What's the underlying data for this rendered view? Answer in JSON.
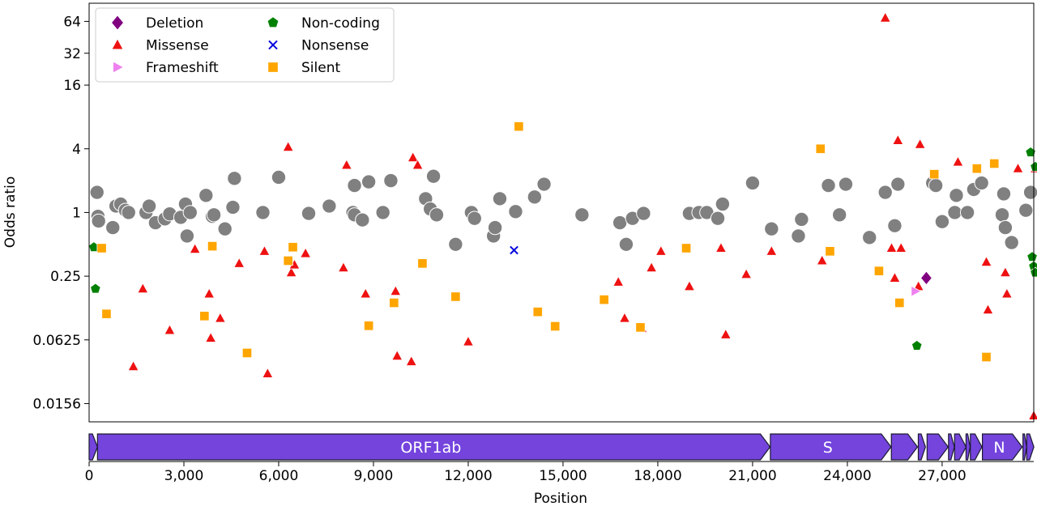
{
  "chart_data": {
    "type": "scatter",
    "title": "",
    "xlabel": "Position",
    "ylabel": "Odds ratio",
    "xlim": [
      0,
      29900
    ],
    "ylim": [
      0.0105,
      95
    ],
    "yscale": "log2",
    "grid": false,
    "legend_position": "top-left",
    "x_ticks": [
      0,
      3000,
      6000,
      9000,
      12000,
      15000,
      18000,
      21000,
      24000,
      27000
    ],
    "x_tick_labels": [
      "0",
      "3,000",
      "6,000",
      "9,000",
      "12,000",
      "15,000",
      "18,000",
      "21,000",
      "24,000",
      "27,000"
    ],
    "y_ticks": [
      0.015625,
      0.0625,
      0.25,
      1,
      4,
      16,
      32,
      64
    ],
    "y_tick_labels": [
      "0.0156",
      "0.0625",
      "0.25",
      "1",
      "4",
      "16",
      "32",
      "64"
    ],
    "series": [
      {
        "name": "Non-variant",
        "legend": false,
        "color": "#808080",
        "marker": "circle",
        "points": [
          [
            250,
            1.55
          ],
          [
            280,
            0.92
          ],
          [
            300,
            0.83
          ],
          [
            750,
            0.72
          ],
          [
            850,
            1.15
          ],
          [
            1000,
            1.2
          ],
          [
            1150,
            1.05
          ],
          [
            1250,
            1.0
          ],
          [
            1800,
            1.0
          ],
          [
            1900,
            1.15
          ],
          [
            2100,
            0.8
          ],
          [
            2400,
            0.87
          ],
          [
            2550,
            0.97
          ],
          [
            2900,
            0.9
          ],
          [
            3050,
            1.2
          ],
          [
            3100,
            0.6
          ],
          [
            3200,
            1.0
          ],
          [
            3700,
            1.45
          ],
          [
            3900,
            0.92
          ],
          [
            3950,
            0.95
          ],
          [
            4300,
            0.7
          ],
          [
            4550,
            1.12
          ],
          [
            4600,
            2.1
          ],
          [
            5500,
            1.0
          ],
          [
            6000,
            2.15
          ],
          [
            6950,
            0.98
          ],
          [
            7600,
            1.15
          ],
          [
            8350,
            1.0
          ],
          [
            8400,
            0.95
          ],
          [
            8400,
            1.8
          ],
          [
            8650,
            0.85
          ],
          [
            8850,
            1.95
          ],
          [
            9300,
            1.0
          ],
          [
            9550,
            2.0
          ],
          [
            10650,
            1.35
          ],
          [
            10800,
            1.08
          ],
          [
            10900,
            2.2
          ],
          [
            11000,
            0.95
          ],
          [
            11600,
            0.5
          ],
          [
            12100,
            1.0
          ],
          [
            12200,
            0.88
          ],
          [
            12800,
            0.6
          ],
          [
            12850,
            0.72
          ],
          [
            13000,
            1.35
          ],
          [
            13500,
            1.02
          ],
          [
            14100,
            1.4
          ],
          [
            14400,
            1.85
          ],
          [
            15600,
            0.95
          ],
          [
            16800,
            0.8
          ],
          [
            17000,
            0.5
          ],
          [
            17200,
            0.88
          ],
          [
            17550,
            0.98
          ],
          [
            19000,
            0.98
          ],
          [
            19300,
            1.0
          ],
          [
            19550,
            1.0
          ],
          [
            19900,
            0.88
          ],
          [
            20050,
            1.2
          ],
          [
            21000,
            1.9
          ],
          [
            21600,
            0.7
          ],
          [
            22450,
            0.6
          ],
          [
            22550,
            0.86
          ],
          [
            23400,
            1.8
          ],
          [
            23750,
            0.95
          ],
          [
            23950,
            1.85
          ],
          [
            24700,
            0.58
          ],
          [
            25200,
            1.55
          ],
          [
            25500,
            0.75
          ],
          [
            25600,
            1.85
          ],
          [
            26700,
            1.9
          ],
          [
            26800,
            1.8
          ],
          [
            27000,
            0.82
          ],
          [
            27400,
            1.0
          ],
          [
            27450,
            1.45
          ],
          [
            27800,
            1.0
          ],
          [
            28000,
            1.65
          ],
          [
            28250,
            1.9
          ],
          [
            28900,
            0.95
          ],
          [
            28950,
            1.5
          ],
          [
            29000,
            0.72
          ],
          [
            29200,
            0.52
          ],
          [
            29650,
            1.05
          ],
          [
            29800,
            1.55
          ]
        ]
      },
      {
        "name": "Deletion",
        "color": "#800080",
        "marker": "diamond",
        "points": [
          [
            26500,
            0.24
          ]
        ]
      },
      {
        "name": "Missense",
        "color": "#ee1111",
        "marker": "triangle",
        "points": [
          [
            1400,
            0.035
          ],
          [
            1700,
            0.19
          ],
          [
            2550,
            0.077
          ],
          [
            3350,
            0.45
          ],
          [
            3800,
            0.17
          ],
          [
            3850,
            0.065
          ],
          [
            4150,
            0.1
          ],
          [
            4750,
            0.33
          ],
          [
            5550,
            0.43
          ],
          [
            5650,
            0.03
          ],
          [
            6300,
            4.15
          ],
          [
            6400,
            0.27
          ],
          [
            6500,
            0.32
          ],
          [
            6850,
            0.41
          ],
          [
            8050,
            0.3
          ],
          [
            8150,
            2.8
          ],
          [
            8750,
            0.17
          ],
          [
            9700,
            0.18
          ],
          [
            9750,
            0.044
          ],
          [
            10200,
            0.039
          ],
          [
            10250,
            3.3
          ],
          [
            10400,
            2.8
          ],
          [
            12000,
            0.06
          ],
          [
            16750,
            0.22
          ],
          [
            16950,
            0.1
          ],
          [
            17500,
            0.08
          ],
          [
            17800,
            0.3
          ],
          [
            18100,
            0.43
          ],
          [
            19000,
            0.2
          ],
          [
            20000,
            0.46
          ],
          [
            20150,
            0.07
          ],
          [
            20800,
            0.26
          ],
          [
            21600,
            0.43
          ],
          [
            23200,
            0.35
          ],
          [
            25200,
            69
          ],
          [
            25400,
            0.46
          ],
          [
            25500,
            0.24
          ],
          [
            25600,
            4.8
          ],
          [
            25700,
            0.46
          ],
          [
            26250,
            0.2
          ],
          [
            26300,
            4.4
          ],
          [
            27500,
            3.0
          ],
          [
            28400,
            0.34
          ],
          [
            28450,
            0.12
          ],
          [
            29000,
            0.27
          ],
          [
            29050,
            0.17
          ],
          [
            29400,
            2.6
          ],
          [
            29900,
            0.012
          ],
          [
            29950,
            2.6
          ]
        ]
      },
      {
        "name": "Frameshift",
        "color": "#ee82ee",
        "marker": "triangle-right",
        "points": [
          [
            26150,
            0.18
          ]
        ]
      },
      {
        "name": "Non-coding",
        "color": "#008000",
        "marker": "pentagon",
        "points": [
          [
            150,
            0.47
          ],
          [
            200,
            0.19
          ],
          [
            26200,
            0.055
          ],
          [
            29800,
            3.7
          ],
          [
            29850,
            0.38
          ],
          [
            29900,
            0.31
          ],
          [
            29950,
            0.27
          ],
          [
            29950,
            2.7
          ]
        ]
      },
      {
        "name": "Nonsense",
        "color": "#0000dd",
        "marker": "x",
        "points": [
          [
            13450,
            0.44
          ]
        ]
      },
      {
        "name": "Silent",
        "color": "#ffa500",
        "marker": "square",
        "points": [
          [
            400,
            0.46
          ],
          [
            550,
            0.11
          ],
          [
            3650,
            0.105
          ],
          [
            3900,
            0.48
          ],
          [
            5000,
            0.047
          ],
          [
            6300,
            0.35
          ],
          [
            6450,
            0.47
          ],
          [
            8850,
            0.085
          ],
          [
            9650,
            0.14
          ],
          [
            10550,
            0.33
          ],
          [
            11600,
            0.16
          ],
          [
            13600,
            6.5
          ],
          [
            14200,
            0.115
          ],
          [
            14750,
            0.084
          ],
          [
            16300,
            0.15
          ],
          [
            17450,
            0.082
          ],
          [
            18900,
            0.46
          ],
          [
            23150,
            4.0
          ],
          [
            23450,
            0.43
          ],
          [
            25000,
            0.28
          ],
          [
            25650,
            0.14
          ],
          [
            26750,
            2.3
          ],
          [
            28100,
            2.6
          ],
          [
            28400,
            0.043
          ],
          [
            28650,
            2.9
          ]
        ]
      }
    ],
    "genome_track": {
      "genes": [
        {
          "name": "",
          "start": 0,
          "end": 265
        },
        {
          "name": "ORF1ab",
          "start": 265,
          "end": 21555
        },
        {
          "name": "S",
          "start": 21563,
          "end": 25384
        },
        {
          "name": "",
          "start": 25393,
          "end": 26220
        },
        {
          "name": "",
          "start": 26245,
          "end": 26472
        },
        {
          "name": "",
          "start": 26523,
          "end": 27191
        },
        {
          "name": "",
          "start": 27202,
          "end": 27387
        },
        {
          "name": "",
          "start": 27394,
          "end": 27759
        },
        {
          "name": "",
          "start": 27756,
          "end": 27887
        },
        {
          "name": "",
          "start": 27894,
          "end": 28259
        },
        {
          "name": "N",
          "start": 28274,
          "end": 29533
        },
        {
          "name": "",
          "start": 29558,
          "end": 29674
        },
        {
          "name": "",
          "start": 29675,
          "end": 29903
        }
      ],
      "fill_color": "#7444dd",
      "stroke_color": "#1a1a2e"
    },
    "colors": {
      "non_variant": "#808080",
      "deletion": "#800080",
      "missense": "#ee1111",
      "frameshift": "#ee82ee",
      "non_coding": "#008000",
      "nonsense": "#0000dd",
      "silent": "#ffa500",
      "gene_fill": "#7444dd"
    }
  }
}
